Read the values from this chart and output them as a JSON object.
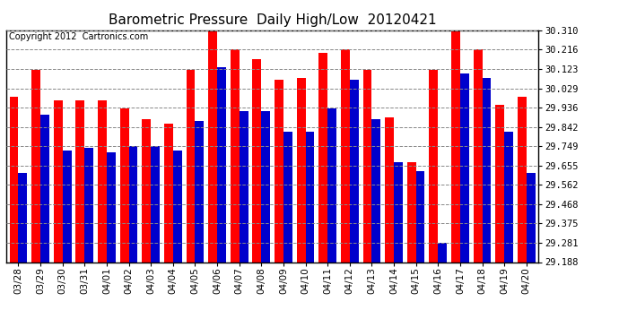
{
  "title": "Barometric Pressure  Daily High/Low  20120421",
  "copyright": "Copyright 2012  Cartronics.com",
  "dates": [
    "03/28",
    "03/29",
    "03/30",
    "03/31",
    "04/01",
    "04/02",
    "04/03",
    "04/04",
    "04/05",
    "04/06",
    "04/07",
    "04/08",
    "04/09",
    "04/10",
    "04/11",
    "04/12",
    "04/13",
    "04/14",
    "04/15",
    "04/16",
    "04/17",
    "04/18",
    "04/19",
    "04/20"
  ],
  "highs": [
    29.99,
    30.12,
    29.97,
    29.97,
    29.97,
    29.93,
    29.88,
    29.86,
    30.12,
    30.31,
    30.22,
    30.17,
    30.07,
    30.08,
    30.2,
    30.22,
    30.12,
    29.89,
    29.67,
    30.12,
    30.35,
    30.22,
    29.95,
    29.99
  ],
  "lows": [
    29.62,
    29.9,
    29.73,
    29.74,
    29.72,
    29.75,
    29.75,
    29.73,
    29.87,
    30.13,
    29.92,
    29.92,
    29.82,
    29.82,
    29.93,
    30.07,
    29.88,
    29.67,
    29.63,
    29.28,
    30.1,
    30.08,
    29.82,
    29.62
  ],
  "bar_color_high": "#ff0000",
  "bar_color_low": "#0000cc",
  "background_color": "#ffffff",
  "plot_bg_color": "#ffffff",
  "grid_color": "#888888",
  "yticks": [
    29.188,
    29.281,
    29.375,
    29.468,
    29.562,
    29.655,
    29.749,
    29.842,
    29.936,
    30.029,
    30.123,
    30.216,
    30.31
  ],
  "ylim": [
    29.188,
    30.31
  ],
  "title_fontsize": 11,
  "copyright_fontsize": 7,
  "tick_fontsize": 7.5
}
